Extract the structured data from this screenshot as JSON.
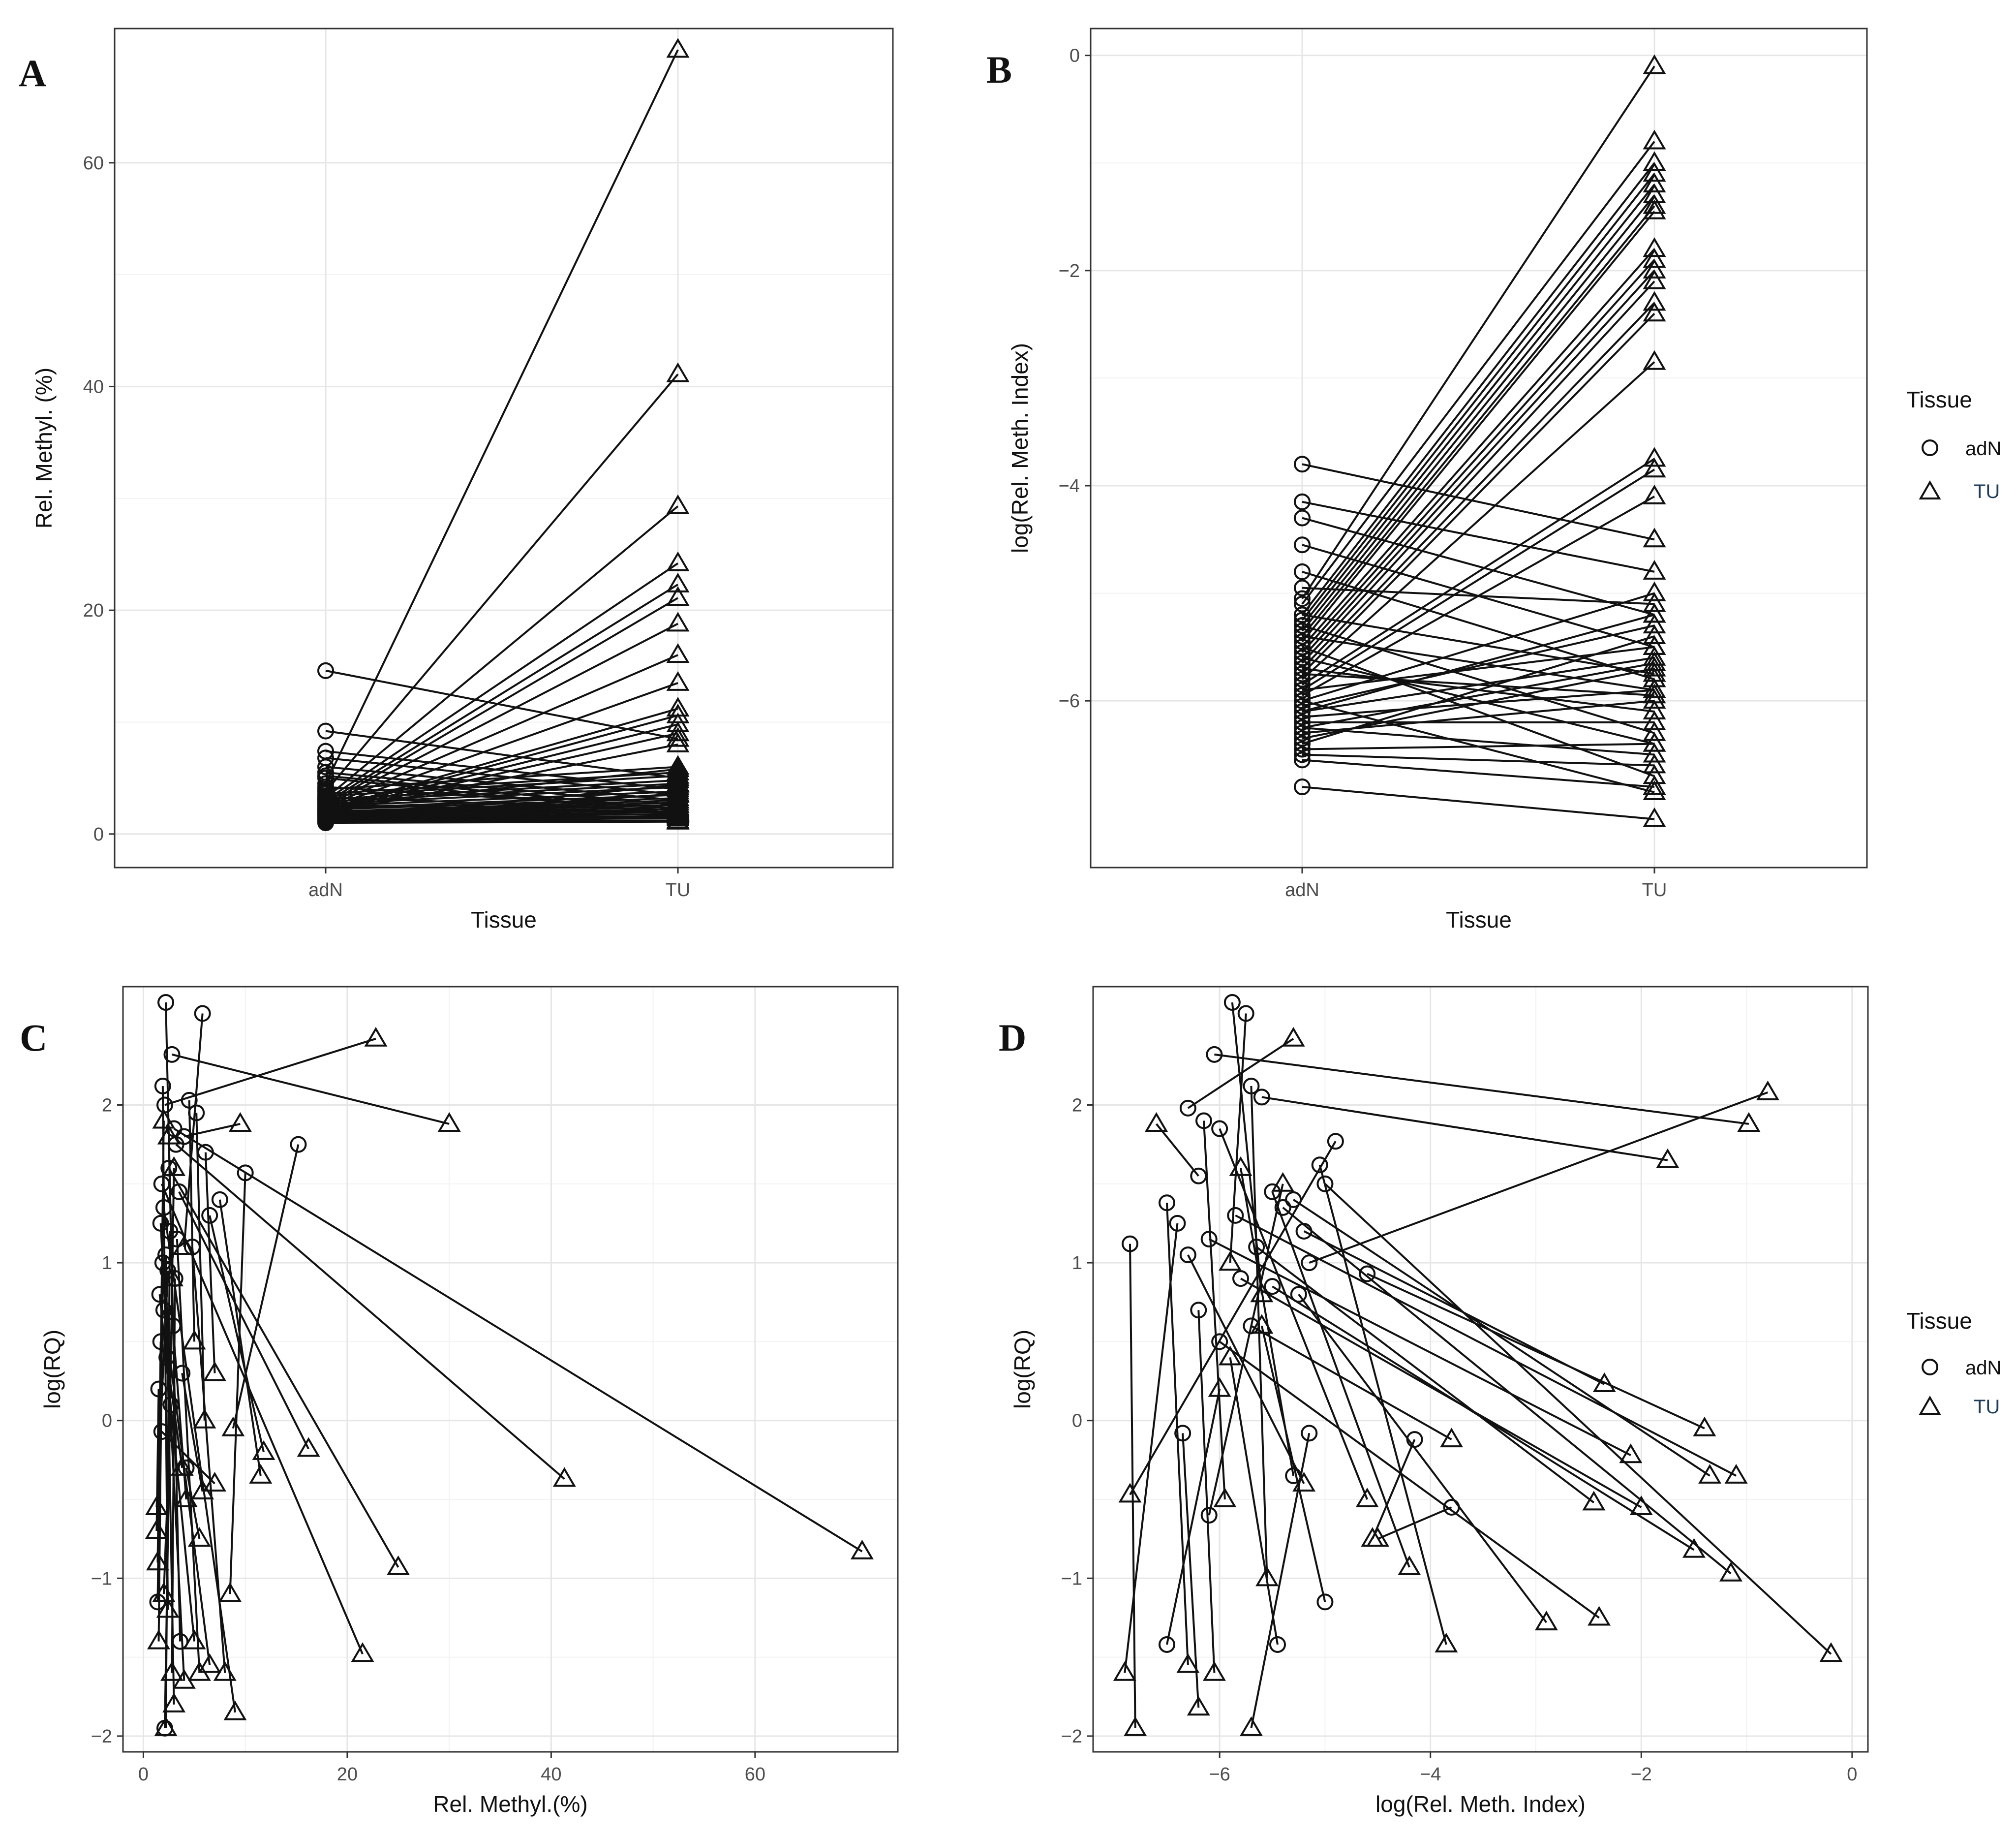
{
  "figure": {
    "legend_title": "Tissue",
    "legend_items": [
      {
        "label": "adN",
        "shape": "circle"
      },
      {
        "label": "TU",
        "shape": "triangle"
      }
    ]
  },
  "chart_data": [
    {
      "panel": "A",
      "type": "line",
      "title": "",
      "xlabel": "Tissue",
      "ylabel": "Rel. Methyl. (%)",
      "categories": [
        "adN",
        "TU"
      ],
      "ylim": [
        -3,
        72
      ],
      "yticks": [
        0,
        20,
        40,
        60
      ],
      "pairs": [
        [
          14.6,
          8.5
        ],
        [
          9.2,
          5.0
        ],
        [
          7.4,
          4.0
        ],
        [
          6.8,
          3.5
        ],
        [
          6.0,
          3.0
        ],
        [
          5.5,
          2.6
        ],
        [
          5.2,
          2.2
        ],
        [
          5.0,
          1.8
        ],
        [
          4.5,
          70.1
        ],
        [
          3.8,
          41.1
        ],
        [
          3.2,
          29.3
        ],
        [
          3.0,
          24.2
        ],
        [
          2.8,
          22.3
        ],
        [
          2.6,
          21.1
        ],
        [
          2.5,
          18.8
        ],
        [
          2.4,
          16.0
        ],
        [
          2.3,
          13.5
        ],
        [
          2.2,
          11.2
        ],
        [
          2.1,
          10.6
        ],
        [
          2.0,
          9.8
        ],
        [
          1.9,
          9.0
        ],
        [
          1.8,
          8.0
        ],
        [
          4.0,
          6.0
        ],
        [
          3.6,
          5.5
        ],
        [
          3.4,
          5.2
        ],
        [
          3.1,
          4.8
        ],
        [
          2.9,
          4.5
        ],
        [
          2.7,
          4.2
        ],
        [
          2.5,
          3.8
        ],
        [
          2.3,
          3.5
        ],
        [
          2.2,
          3.2
        ],
        [
          2.0,
          3.0
        ],
        [
          1.9,
          2.8
        ],
        [
          1.8,
          2.6
        ],
        [
          1.7,
          2.4
        ],
        [
          1.6,
          2.2
        ],
        [
          1.5,
          2.0
        ],
        [
          1.4,
          1.8
        ],
        [
          1.3,
          1.6
        ],
        [
          1.2,
          1.4
        ],
        [
          1.1,
          1.2
        ],
        [
          1.0,
          1.1
        ],
        [
          1.6,
          1.5
        ],
        [
          2.1,
          1.7
        ],
        [
          2.6,
          1.9
        ],
        [
          3.3,
          2.1
        ],
        [
          4.2,
          2.3
        ],
        [
          1.4,
          3.6
        ],
        [
          1.2,
          4.4
        ],
        [
          2.4,
          5.8
        ]
      ]
    },
    {
      "panel": "B",
      "type": "line",
      "title": "",
      "xlabel": "Tissue",
      "ylabel": "log(Rel. Meth. Index)",
      "categories": [
        "adN",
        "TU"
      ],
      "ylim": [
        -7.55,
        0.25
      ],
      "yticks": [
        -6,
        -4,
        -2,
        0
      ],
      "pairs": [
        [
          -3.8,
          -4.5
        ],
        [
          -4.15,
          -4.8
        ],
        [
          -4.3,
          -5.2
        ],
        [
          -4.55,
          -5.5
        ],
        [
          -4.8,
          -5.8
        ],
        [
          -4.95,
          -5.1
        ],
        [
          -5.05,
          -0.1
        ],
        [
          -5.1,
          -0.8
        ],
        [
          -5.2,
          -1.0
        ],
        [
          -5.25,
          -1.1
        ],
        [
          -5.3,
          -1.2
        ],
        [
          -5.35,
          -1.3
        ],
        [
          -5.4,
          -1.4
        ],
        [
          -5.45,
          -1.45
        ],
        [
          -5.5,
          -1.8
        ],
        [
          -5.55,
          -1.9
        ],
        [
          -5.6,
          -2.0
        ],
        [
          -5.65,
          -2.1
        ],
        [
          -5.7,
          -2.3
        ],
        [
          -5.75,
          -2.4
        ],
        [
          -5.8,
          -2.85
        ],
        [
          -5.85,
          -3.75
        ],
        [
          -5.9,
          -3.85
        ],
        [
          -5.95,
          -4.1
        ],
        [
          -6.0,
          -5.0
        ],
        [
          -6.05,
          -5.3
        ],
        [
          -6.1,
          -5.6
        ],
        [
          -6.15,
          -5.9
        ],
        [
          -6.2,
          -6.2
        ],
        [
          -6.25,
          -6.5
        ],
        [
          -6.3,
          -6.0
        ],
        [
          -6.35,
          -5.7
        ],
        [
          -6.4,
          -5.4
        ],
        [
          -6.45,
          -6.4
        ],
        [
          -6.5,
          -6.6
        ],
        [
          -6.55,
          -6.8
        ],
        [
          -6.8,
          -7.1
        ],
        [
          -5.3,
          -6.3
        ],
        [
          -5.5,
          -6.7
        ],
        [
          -5.7,
          -6.1
        ],
        [
          -5.9,
          -5.5
        ],
        [
          -6.1,
          -5.2
        ],
        [
          -5.4,
          -5.9
        ],
        [
          -5.6,
          -6.4
        ],
        [
          -6.0,
          -6.85
        ],
        [
          -5.2,
          -5.75
        ],
        [
          -5.75,
          -5.95
        ],
        [
          -6.25,
          -5.65
        ]
      ]
    },
    {
      "panel": "C",
      "type": "scatter",
      "title": "",
      "xlabel": "Rel. Methyl.(%)",
      "ylabel": "log(RQ)",
      "xlim": [
        -2,
        74
      ],
      "ylim": [
        -2.1,
        2.75
      ],
      "xticks": [
        0,
        20,
        40,
        60
      ],
      "yticks": [
        -2,
        -1,
        0,
        1,
        2
      ],
      "segments": [
        [
          2.2,
          2.65,
          2.8,
          0.9
        ],
        [
          5.8,
          2.58,
          4.0,
          1.1
        ],
        [
          2.8,
          2.32,
          30.0,
          1.88
        ],
        [
          1.9,
          2.12,
          2.4,
          -1.2
        ],
        [
          4.5,
          2.03,
          5.0,
          0.5
        ],
        [
          2.1,
          2.0,
          22.8,
          2.42
        ],
        [
          5.2,
          1.95,
          6.0,
          0.0
        ],
        [
          3.0,
          1.85,
          70.5,
          -0.83
        ],
        [
          4.0,
          1.8,
          9.5,
          1.88
        ],
        [
          3.2,
          1.75,
          41.3,
          -0.37
        ],
        [
          15.2,
          1.75,
          8.8,
          -0.05
        ],
        [
          6.1,
          1.7,
          7.0,
          0.3
        ],
        [
          2.5,
          1.6,
          25.0,
          -0.93
        ],
        [
          10.0,
          1.57,
          8.5,
          -1.1
        ],
        [
          1.8,
          1.5,
          21.5,
          -1.48
        ],
        [
          3.5,
          1.45,
          16.2,
          -0.18
        ],
        [
          7.5,
          1.4,
          11.5,
          -0.35
        ],
        [
          2.0,
          1.35,
          9.0,
          -1.85
        ],
        [
          6.5,
          1.3,
          11.8,
          -0.2
        ],
        [
          1.7,
          1.25,
          4.0,
          -1.65
        ],
        [
          2.6,
          1.2,
          2.2,
          -1.95
        ],
        [
          3.3,
          1.15,
          5.5,
          -1.6
        ],
        [
          4.8,
          1.1,
          8.0,
          -1.6
        ],
        [
          2.2,
          1.05,
          3.0,
          -1.8
        ],
        [
          1.9,
          1.0,
          1.5,
          -1.4
        ],
        [
          2.4,
          0.95,
          1.3,
          -0.55
        ],
        [
          3.1,
          0.9,
          2.8,
          -1.6
        ],
        [
          1.6,
          0.8,
          5.0,
          -1.4
        ],
        [
          2.0,
          0.7,
          6.5,
          -1.55
        ],
        [
          2.9,
          0.6,
          4.2,
          -0.5
        ],
        [
          1.7,
          0.5,
          1.4,
          -0.9
        ],
        [
          2.3,
          0.4,
          3.8,
          -0.3
        ],
        [
          3.8,
          0.3,
          5.8,
          -0.45
        ],
        [
          1.5,
          0.2,
          1.3,
          -0.7
        ],
        [
          2.7,
          0.1,
          2.0,
          -1.1
        ],
        [
          1.8,
          -0.07,
          7.0,
          -0.4
        ],
        [
          4.2,
          -0.3,
          5.5,
          -0.75
        ],
        [
          3.6,
          -1.4,
          2.5,
          1.8
        ],
        [
          2.1,
          -1.95,
          3.0,
          1.6
        ],
        [
          1.4,
          -1.15,
          2.0,
          1.9
        ]
      ]
    },
    {
      "panel": "D",
      "type": "scatter",
      "title": "",
      "xlabel": "log(Rel. Meth. Index)",
      "ylabel": "log(RQ)",
      "xlim": [
        -7.2,
        0.15
      ],
      "ylim": [
        -2.1,
        2.75
      ],
      "xticks": [
        -6,
        -4,
        -2,
        0
      ],
      "yticks": [
        -2,
        -1,
        0,
        1,
        2
      ],
      "segments": [
        [
          -5.88,
          2.65,
          -5.6,
          0.8
        ],
        [
          -5.75,
          2.58,
          -5.9,
          1.0
        ],
        [
          -6.05,
          2.32,
          -0.98,
          1.88
        ],
        [
          -5.7,
          2.12,
          -5.55,
          -1.0
        ],
        [
          -5.6,
          2.05,
          -1.75,
          1.65
        ],
        [
          -6.3,
          1.98,
          -5.3,
          2.42
        ],
        [
          -6.15,
          1.9,
          -5.95,
          -0.5
        ],
        [
          -6.0,
          1.85,
          -4.6,
          -0.5
        ],
        [
          -4.9,
          1.77,
          -6.85,
          -0.47
        ],
        [
          -5.05,
          1.62,
          -3.85,
          -1.42
        ],
        [
          -6.2,
          1.55,
          -6.6,
          1.88
        ],
        [
          -5.0,
          1.5,
          -0.2,
          -1.48
        ],
        [
          -5.5,
          1.45,
          -4.2,
          -0.93
        ],
        [
          -5.3,
          1.4,
          -1.35,
          -0.35
        ],
        [
          -5.4,
          1.35,
          -1.15,
          -0.97
        ],
        [
          -6.5,
          1.38,
          -6.3,
          -1.55
        ],
        [
          -5.85,
          1.3,
          -1.1,
          -0.35
        ],
        [
          -6.4,
          1.25,
          -6.9,
          -1.6
        ],
        [
          -5.2,
          1.2,
          -2.35,
          0.23
        ],
        [
          -6.1,
          1.15,
          -2.1,
          -0.22
        ],
        [
          -5.65,
          1.1,
          -2.45,
          -0.52
        ],
        [
          -6.85,
          1.12,
          -6.8,
          -1.95
        ],
        [
          -6.3,
          1.05,
          -5.2,
          -0.4
        ],
        [
          -5.15,
          1.0,
          -0.8,
          2.08
        ],
        [
          -4.6,
          0.93,
          -1.4,
          -0.05
        ],
        [
          -5.8,
          0.9,
          -2.0,
          -0.55
        ],
        [
          -5.5,
          0.85,
          -1.5,
          -0.82
        ],
        [
          -5.25,
          0.8,
          -2.9,
          -1.28
        ],
        [
          -6.2,
          0.7,
          -6.05,
          -1.6
        ],
        [
          -5.7,
          0.6,
          -3.8,
          -0.12
        ],
        [
          -6.0,
          0.5,
          -2.4,
          -1.25
        ],
        [
          -6.35,
          -0.08,
          -6.2,
          -1.82
        ],
        [
          -5.15,
          -0.08,
          -5.7,
          -1.95
        ],
        [
          -4.15,
          -0.12,
          -4.55,
          -0.75
        ],
        [
          -5.45,
          -1.42,
          -5.9,
          0.4
        ],
        [
          -3.8,
          -0.55,
          -4.5,
          -0.75
        ],
        [
          -5.0,
          -1.15,
          -5.6,
          0.6
        ],
        [
          -6.5,
          -1.42,
          -6.0,
          0.2
        ],
        [
          -5.3,
          -0.35,
          -5.8,
          1.6
        ],
        [
          -6.1,
          -0.6,
          -5.4,
          1.5
        ]
      ]
    }
  ]
}
